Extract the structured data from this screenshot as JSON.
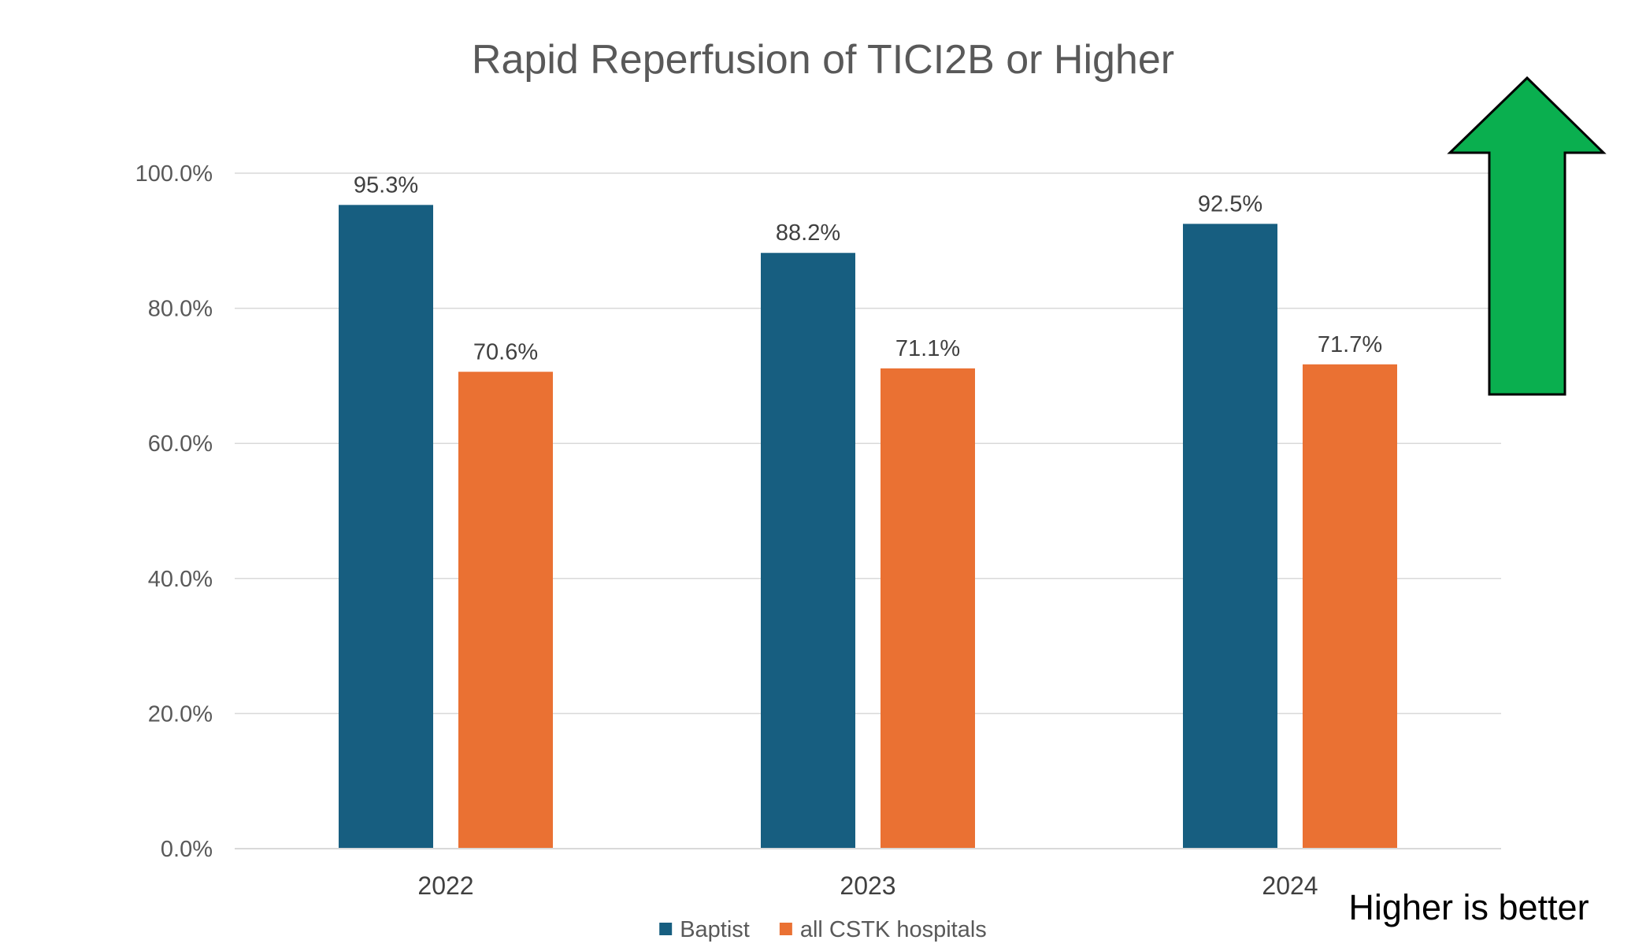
{
  "chart_data": {
    "type": "bar",
    "title": "Rapid Reperfusion of TICI2B or Higher",
    "categories": [
      "2022",
      "2023",
      "2024"
    ],
    "series": [
      {
        "name": "Baptist",
        "values": [
          95.3,
          88.2,
          92.5
        ],
        "labels": [
          "95.3%",
          "88.2%",
          "92.5%"
        ],
        "color": "#175e80"
      },
      {
        "name": "all CSTK hospitals",
        "values": [
          70.6,
          71.1,
          71.7
        ],
        "labels": [
          "70.6%",
          "71.1%",
          "71.7%"
        ],
        "color": "#ea7133"
      }
    ],
    "ylim": [
      0,
      100
    ],
    "yticks": [
      0,
      20,
      40,
      60,
      80,
      100
    ],
    "ytick_labels": [
      "0.0%",
      "20.0%",
      "40.0%",
      "60.0%",
      "80.0%",
      "100.0%"
    ],
    "grid": true,
    "legend": "bottom"
  },
  "annotation": {
    "text": "Higher is better",
    "arrow_color": "#0aaf4f",
    "arrow_icon": "up-arrow-icon"
  }
}
